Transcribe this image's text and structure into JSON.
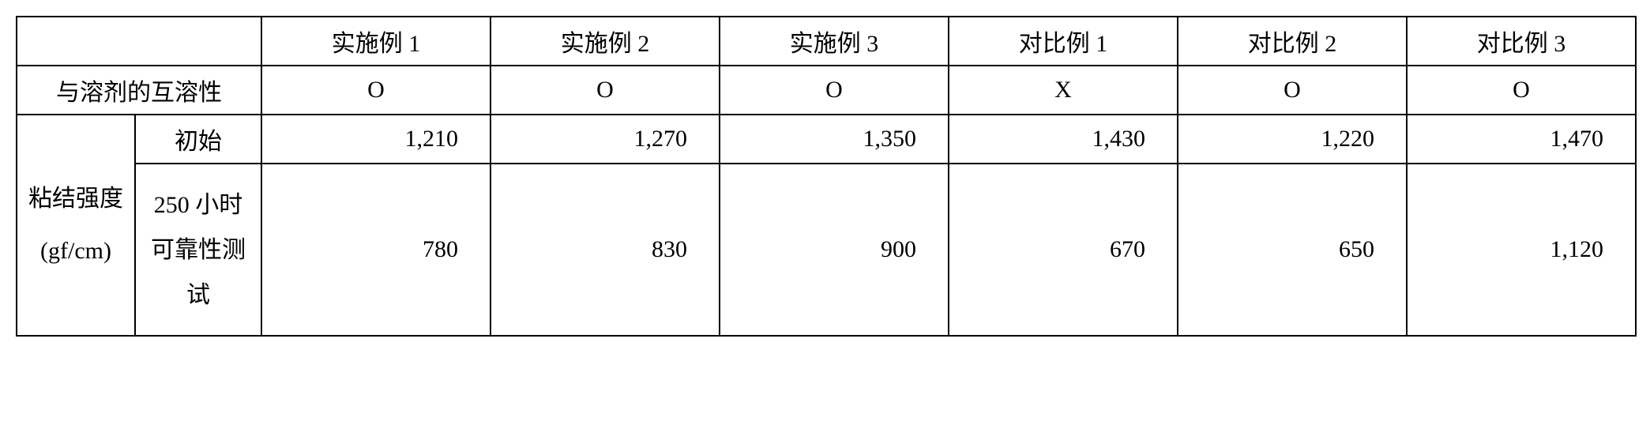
{
  "table": {
    "type": "table",
    "border_color": "#000000",
    "border_width": "2px",
    "background_color": "#ffffff",
    "font_family": "SimSun",
    "header_fontsize": 30,
    "label_fontsize": 30,
    "data_fontsize": 30,
    "text_align_headers": "center",
    "text_align_data": "right",
    "columns": {
      "label1_width": 150,
      "label2_width": 160,
      "data_width": 290
    },
    "headers": {
      "blank": "",
      "col1": "实施例 1",
      "col2": "实施例 2",
      "col3": "实施例 3",
      "col4": "对比例 1",
      "col5": "对比例 2",
      "col6": "对比例 3"
    },
    "row_labels": {
      "miscibility": "与溶剂的互溶性",
      "bond_strength_group": "粘结强度",
      "bond_strength_unit": "(gf/cm)",
      "initial": "初始",
      "reliability_250h": "250 小时可靠性测试"
    },
    "rows": {
      "miscibility": {
        "col1": "O",
        "col2": "O",
        "col3": "O",
        "col4": "X",
        "col5": "O",
        "col6": "O"
      },
      "initial": {
        "col1": "1,210",
        "col2": "1,270",
        "col3": "1,350",
        "col4": "1,430",
        "col5": "1,220",
        "col6": "1,470"
      },
      "reliability_250h": {
        "col1": "780",
        "col2": "830",
        "col3": "900",
        "col4": "670",
        "col5": "650",
        "col6": "1,120"
      }
    }
  }
}
